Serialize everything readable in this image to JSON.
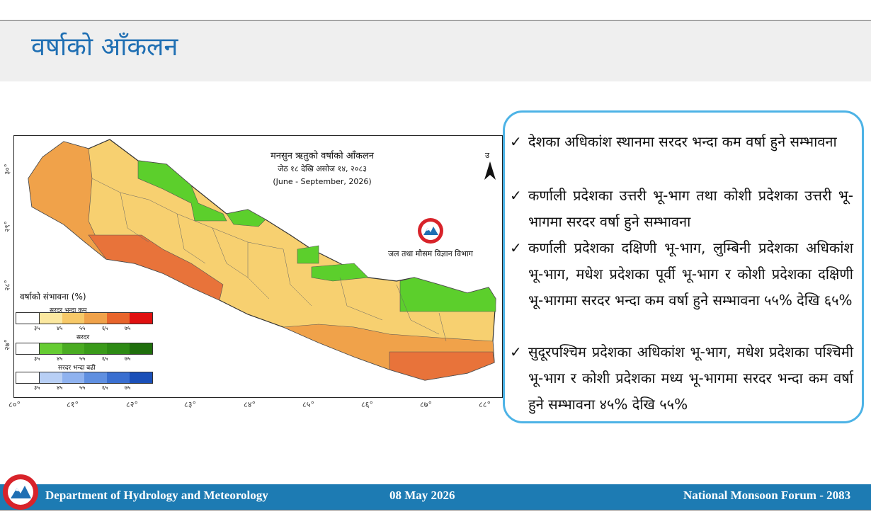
{
  "slide": {
    "title": "वर्षाको आँकलन"
  },
  "map": {
    "title": "मनसुन ऋतुको वर्षाको आँकलन",
    "subtitle": "जेठ १८ देखि असोज १४, २०८३",
    "subtitle_en": "(June - September, 2026)",
    "north_label": "उ",
    "logo_caption": "जल तथा मौसम विज्ञान विभाग",
    "lat_labels": [
      "३०°",
      "२९°",
      "२८°",
      "२७°"
    ],
    "lon_labels": [
      "८०°",
      "८१°",
      "८२°",
      "८३°",
      "८४°",
      "८५°",
      "८६°",
      "८७°",
      "८८°"
    ],
    "legend": {
      "title": "वर्षाको संभावना (%)",
      "groups": [
        {
          "label": "सरदर भन्दा कम",
          "colors": [
            "#ffffff",
            "#fbe8a0",
            "#f7c968",
            "#f0a24a",
            "#e8652c",
            "#e01010"
          ]
        },
        {
          "label": "सरदर",
          "colors": [
            "#ffffff",
            "#66cc33",
            "#4aab22",
            "#3a9a1a",
            "#2d8a14",
            "#1f6e0c"
          ]
        },
        {
          "label": "सरदर भन्दा बढी",
          "colors": [
            "#ffffff",
            "#b8cff5",
            "#8fb2ef",
            "#5f8fe0",
            "#3a6fd0",
            "#1a4fb8"
          ]
        }
      ],
      "ticks": [
        "३५",
        "४५",
        "५५",
        "६५",
        "७५"
      ]
    },
    "zone_colors": {
      "below_55_65": "#f0a24a",
      "below_45_55": "#f7d070",
      "below_65_75": "#e8733a",
      "normal": "#5ccf2c"
    }
  },
  "bullets": [
    "देशका अधिकांश स्थानमा सरदर भन्दा कम वर्षा हुने सम्भावना",
    "कर्णाली प्रदेशका उत्तरी भू-भाग तथा कोशी प्रदेशका उत्तरी भू-भागमा सरदर वर्षा हुने सम्भावना",
    "कर्णाली प्रदेशका दक्षिणी भू-भाग, लुम्बिनी प्रदेशका अधिकांश भू-भाग, मधेश प्रदेशका पूर्वी भू-भाग र कोशी प्रदेशका दक्षिणी भू-भागमा सरदर भन्दा कम वर्षा हुने सम्भावना ५५% देखि ६५%",
    "सुदूरपश्चिम प्रदेशका अधिकांश भू-भाग, मधेश प्रदेशका पश्चिमी भू-भाग र कोशी प्रदेशका मध्य भू-भागमा सरदर भन्दा कम वर्षा हुने सम्भावना ४५% देखि ५५%"
  ],
  "tick_glyph": "✓",
  "footer": {
    "left": "Department of Hydrology and Meteorology",
    "center": "08 May 2026",
    "right": "National Monsoon Forum - 2083"
  },
  "colors": {
    "title_blue": "#1f6fb3",
    "footer_blue": "#1d7bb3",
    "box_border": "#4db3e6"
  }
}
